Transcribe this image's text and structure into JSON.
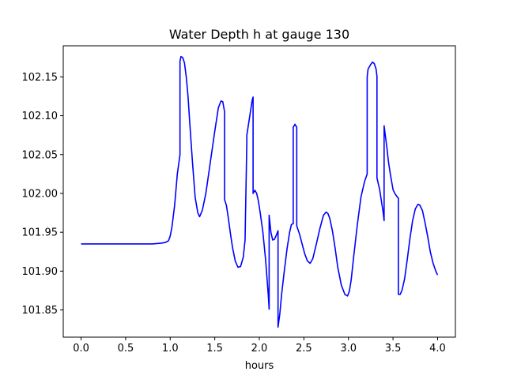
{
  "chart_data": {
    "type": "line",
    "title": "Water Depth h at gauge 130",
    "xlabel": "hours",
    "ylabel": "",
    "xlim": [
      -0.2,
      4.2
    ],
    "ylim": [
      101.815,
      102.19
    ],
    "xticks": [
      0.0,
      0.5,
      1.0,
      1.5,
      2.0,
      2.5,
      3.0,
      3.5,
      4.0
    ],
    "xtick_labels": [
      "0.0",
      "0.5",
      "1.0",
      "1.5",
      "2.0",
      "2.5",
      "3.0",
      "3.5",
      "4.0"
    ],
    "yticks": [
      101.85,
      101.9,
      101.95,
      102.0,
      102.05,
      102.1,
      102.15
    ],
    "ytick_labels": [
      "101.85",
      "101.90",
      "101.95",
      "102.00",
      "102.05",
      "102.10",
      "102.15"
    ],
    "grid": false,
    "series": [
      {
        "color": "#0000ff",
        "x": [
          0.0,
          0.3,
          0.6,
          0.8,
          0.9,
          0.95,
          0.98,
          1.0,
          1.02,
          1.05,
          1.08,
          1.11,
          1.11,
          1.12,
          1.14,
          1.16,
          1.18,
          1.2,
          1.22,
          1.25,
          1.28,
          1.31,
          1.33,
          1.36,
          1.4,
          1.45,
          1.5,
          1.54,
          1.57,
          1.59,
          1.61,
          1.61,
          1.63,
          1.65,
          1.68,
          1.7,
          1.73,
          1.76,
          1.79,
          1.82,
          1.84,
          1.86,
          1.86,
          1.88,
          1.9,
          1.92,
          1.93,
          1.93,
          1.95,
          1.97,
          1.99,
          2.01,
          2.04,
          2.07,
          2.1,
          2.11,
          2.11,
          2.13,
          2.15,
          2.17,
          2.19,
          2.21,
          2.21,
          2.23,
          2.25,
          2.28,
          2.31,
          2.34,
          2.36,
          2.38,
          2.38,
          2.4,
          2.42,
          2.42,
          2.45,
          2.48,
          2.51,
          2.54,
          2.57,
          2.6,
          2.64,
          2.68,
          2.72,
          2.75,
          2.77,
          2.79,
          2.82,
          2.85,
          2.88,
          2.92,
          2.96,
          2.99,
          3.01,
          3.03,
          3.06,
          3.1,
          3.14,
          3.18,
          3.21,
          3.21,
          3.22,
          3.25,
          3.27,
          3.29,
          3.31,
          3.32,
          3.32,
          3.35,
          3.37,
          3.39,
          3.4,
          3.4,
          3.41,
          3.43,
          3.45,
          3.47,
          3.5,
          3.52,
          3.55,
          3.56,
          3.56,
          3.58,
          3.6,
          3.63,
          3.66,
          3.69,
          3.72,
          3.75,
          3.78,
          3.8,
          3.83,
          3.86,
          3.89,
          3.92,
          3.95,
          3.98,
          4.0
        ],
        "y": [
          101.935,
          101.935,
          101.935,
          101.935,
          101.936,
          101.937,
          101.939,
          101.945,
          101.957,
          101.985,
          102.025,
          102.05,
          102.17,
          102.176,
          102.175,
          102.168,
          102.15,
          102.125,
          102.09,
          102.04,
          101.995,
          101.975,
          101.97,
          101.978,
          102.0,
          102.04,
          102.08,
          102.11,
          102.119,
          102.118,
          102.105,
          101.992,
          101.985,
          101.97,
          101.945,
          101.93,
          101.913,
          101.905,
          101.906,
          101.918,
          101.94,
          102.068,
          102.075,
          102.09,
          102.105,
          102.12,
          102.124,
          102.0,
          102.004,
          102.0,
          101.99,
          101.975,
          101.95,
          101.915,
          101.87,
          101.851,
          101.972,
          101.95,
          101.94,
          101.941,
          101.946,
          101.952,
          101.828,
          101.845,
          101.87,
          101.9,
          101.928,
          101.95,
          101.96,
          101.961,
          102.085,
          102.089,
          102.085,
          101.958,
          101.948,
          101.935,
          101.922,
          101.913,
          101.91,
          101.916,
          101.935,
          101.955,
          101.972,
          101.976,
          101.974,
          101.968,
          101.952,
          101.93,
          101.905,
          101.882,
          101.87,
          101.868,
          101.874,
          101.888,
          101.92,
          101.96,
          101.995,
          102.015,
          102.025,
          102.15,
          102.16,
          102.166,
          102.169,
          102.167,
          102.16,
          102.151,
          102.02,
          102.005,
          101.99,
          101.975,
          101.965,
          102.087,
          102.078,
          102.06,
          102.04,
          102.025,
          102.005,
          102.0,
          101.995,
          101.994,
          101.87,
          101.87,
          101.875,
          101.89,
          101.915,
          101.942,
          101.965,
          101.98,
          101.986,
          101.985,
          101.978,
          101.962,
          101.944,
          101.924,
          101.91,
          101.9,
          101.895
        ]
      }
    ]
  }
}
